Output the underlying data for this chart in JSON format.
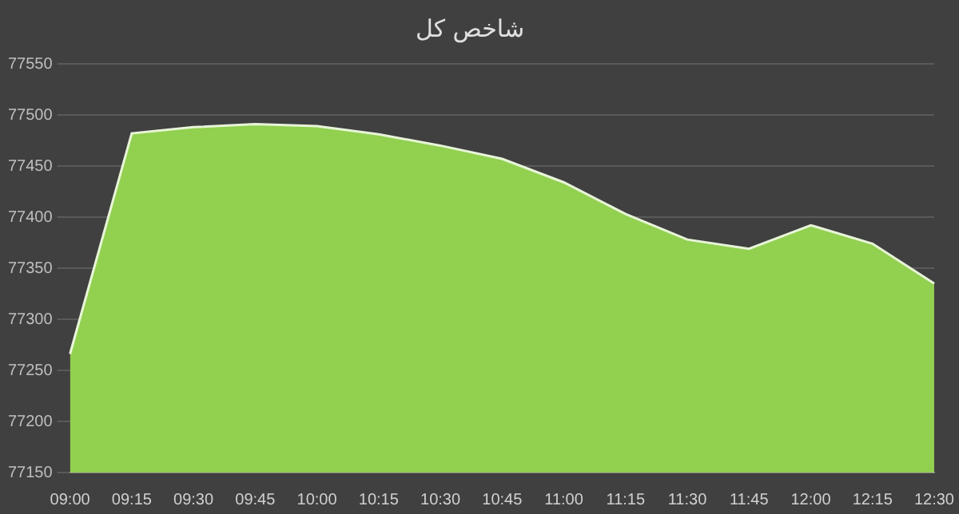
{
  "chart_data": {
    "type": "area",
    "title": "شاخص کل",
    "categories": [
      "09:00",
      "09:15",
      "09:30",
      "09:45",
      "10:00",
      "10:15",
      "10:30",
      "10:45",
      "11:00",
      "11:15",
      "11:30",
      "11:45",
      "12:00",
      "12:15",
      "12:30"
    ],
    "series": [
      {
        "color": "#92d050",
        "values": [
          77266,
          77482,
          77488,
          77491,
          77489,
          77481,
          77470,
          77457,
          77434,
          77403,
          77378,
          77369,
          77392,
          77374,
          77335
        ]
      }
    ],
    "ylim": [
      77150,
      77550
    ],
    "yticks": [
      77150,
      77200,
      77250,
      77300,
      77350,
      77400,
      77450,
      77500,
      77550
    ],
    "grid": "y",
    "legend": false
  }
}
